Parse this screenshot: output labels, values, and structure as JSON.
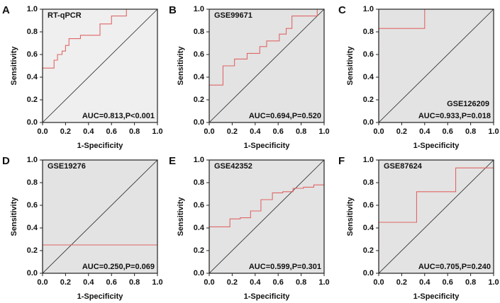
{
  "chart_data": [
    {
      "panel": "A",
      "type": "line",
      "title": "RT-qPCR",
      "title_corner": "top-left",
      "annotation": "AUC=0.813,P<0.001",
      "xlabel": "1-Specificity",
      "ylabel": "Sensitivity",
      "background": "#efefef",
      "diagonal": true,
      "xlim": [
        0,
        1
      ],
      "ylim": [
        0,
        1
      ],
      "xticks": [
        {
          "value": 0,
          "label": "0.0"
        },
        {
          "value": 0.2,
          "label": "0.2"
        },
        {
          "value": 0.4,
          "label": "0.4"
        },
        {
          "value": 0.6,
          "label": "0.6"
        },
        {
          "value": 0.8,
          "label": "0.8"
        },
        {
          "value": 1,
          "label": "1.0"
        }
      ],
      "yticks": [
        {
          "value": 0,
          "label": "0.0"
        },
        {
          "value": 0.2,
          "label": "0.2"
        },
        {
          "value": 0.4,
          "label": "0.4"
        },
        {
          "value": 0.6,
          "label": "0.6"
        },
        {
          "value": 0.8,
          "label": "0.8"
        },
        {
          "value": 1,
          "label": "1.0"
        }
      ],
      "series": [
        {
          "color": "#e06666",
          "x": [
            0,
            0,
            0.1,
            0.1,
            0.13,
            0.13,
            0.17,
            0.17,
            0.2,
            0.2,
            0.23,
            0.23,
            0.33,
            0.33,
            0.5,
            0.5,
            0.6,
            0.6,
            0.73,
            0.73,
            1
          ],
          "values": [
            0,
            0.48,
            0.48,
            0.55,
            0.55,
            0.6,
            0.6,
            0.63,
            0.63,
            0.68,
            0.68,
            0.74,
            0.74,
            0.77,
            0.77,
            0.87,
            0.87,
            0.94,
            0.94,
            1,
            1
          ]
        }
      ]
    },
    {
      "panel": "B",
      "type": "line",
      "title": "GSE99671",
      "title_corner": "top-left",
      "annotation": "AUC=0.694,P=0.520",
      "xlabel": "1-Specificity",
      "ylabel": "Sensitivity",
      "background": "#e3e3e3",
      "diagonal": true,
      "xlim": [
        0,
        1
      ],
      "ylim": [
        0,
        1
      ],
      "xticks": [
        {
          "value": 0,
          "label": "0.0"
        },
        {
          "value": 0.2,
          "label": "0.2"
        },
        {
          "value": 0.4,
          "label": "0.4"
        },
        {
          "value": 0.6,
          "label": "0.6"
        },
        {
          "value": 0.8,
          "label": "0.8"
        },
        {
          "value": 1,
          "label": "1.0"
        }
      ],
      "yticks": [
        {
          "value": 0,
          "label": "0.0"
        },
        {
          "value": 0.2,
          "label": "0.2"
        },
        {
          "value": 0.4,
          "label": "0.4"
        },
        {
          "value": 0.6,
          "label": "0.6"
        },
        {
          "value": 0.8,
          "label": "0.8"
        },
        {
          "value": 1,
          "label": "1.0"
        }
      ],
      "series": [
        {
          "color": "#e06666",
          "x": [
            0,
            0,
            0.12,
            0.12,
            0.22,
            0.22,
            0.33,
            0.33,
            0.44,
            0.44,
            0.5,
            0.5,
            0.61,
            0.61,
            0.67,
            0.67,
            0.72,
            0.72,
            0.94,
            0.94,
            1
          ],
          "values": [
            0,
            0.33,
            0.33,
            0.5,
            0.5,
            0.56,
            0.56,
            0.61,
            0.61,
            0.67,
            0.67,
            0.72,
            0.72,
            0.78,
            0.78,
            0.83,
            0.83,
            0.94,
            0.94,
            1,
            1
          ]
        }
      ]
    },
    {
      "panel": "C",
      "type": "line",
      "title": "GSE126209",
      "title_corner": "bottom-right",
      "annotation": "AUC=0.933,P=0.018",
      "xlabel": "1-Specificity",
      "ylabel": "Sensitivity",
      "background": "#e3e3e3",
      "diagonal": true,
      "xlim": [
        0,
        1
      ],
      "ylim": [
        0,
        1
      ],
      "xticks": [
        {
          "value": 0,
          "label": "0.0"
        },
        {
          "value": 0.2,
          "label": "0.2"
        },
        {
          "value": 0.4,
          "label": "0.4"
        },
        {
          "value": 0.6,
          "label": "0.6"
        },
        {
          "value": 0.8,
          "label": "0.8"
        },
        {
          "value": 1,
          "label": "1.0"
        }
      ],
      "yticks": [
        {
          "value": 0,
          "label": "0.0"
        },
        {
          "value": 0.2,
          "label": "0.2"
        },
        {
          "value": 0.4,
          "label": "0.4"
        },
        {
          "value": 0.6,
          "label": "0.6"
        },
        {
          "value": 0.8,
          "label": "0.8"
        },
        {
          "value": 1,
          "label": "1.0"
        }
      ],
      "series": [
        {
          "color": "#e06666",
          "x": [
            0,
            0,
            0.4,
            0.4,
            1
          ],
          "values": [
            0,
            0.83,
            0.83,
            1,
            1
          ]
        }
      ]
    },
    {
      "panel": "D",
      "type": "line",
      "title": "GSE19276",
      "title_corner": "top-left",
      "annotation": "AUC=0.250,P=0.069",
      "xlabel": "1-Specificity",
      "ylabel": "Sensitivity",
      "background": "#e3e3e3",
      "diagonal": true,
      "xlim": [
        0,
        1
      ],
      "ylim": [
        0,
        1
      ],
      "xticks": [
        {
          "value": 0,
          "label": "0.0"
        },
        {
          "value": 0.2,
          "label": "0.2"
        },
        {
          "value": 0.4,
          "label": "0.4"
        },
        {
          "value": 0.6,
          "label": "0.6"
        },
        {
          "value": 0.8,
          "label": "0.8"
        },
        {
          "value": 1,
          "label": "1.0"
        }
      ],
      "yticks": [
        {
          "value": 0,
          "label": "0.0"
        },
        {
          "value": 0.2,
          "label": "0.2"
        },
        {
          "value": 0.4,
          "label": "0.4"
        },
        {
          "value": 0.6,
          "label": "0.6"
        },
        {
          "value": 0.8,
          "label": "0.8"
        },
        {
          "value": 1,
          "label": "1.0"
        }
      ],
      "series": [
        {
          "color": "#e06666",
          "x": [
            0,
            0,
            1
          ],
          "values": [
            0,
            0.25,
            0.25
          ]
        }
      ]
    },
    {
      "panel": "E",
      "type": "line",
      "title": "GSE42352",
      "title_corner": "top-left",
      "annotation": "AUC=0.599,P=0.301",
      "xlabel": "1-Specificity",
      "ylabel": "Sensitivity",
      "background": "#e3e3e3",
      "diagonal": true,
      "xlim": [
        0,
        1
      ],
      "ylim": [
        0,
        1
      ],
      "xticks": [
        {
          "value": 0,
          "label": "0.0"
        },
        {
          "value": 0.2,
          "label": "0.2"
        },
        {
          "value": 0.4,
          "label": "0.4"
        },
        {
          "value": 0.6,
          "label": "0.6"
        },
        {
          "value": 0.8,
          "label": "0.8"
        },
        {
          "value": 1,
          "label": "1.0"
        }
      ],
      "yticks": [
        {
          "value": 0,
          "label": "0.0"
        },
        {
          "value": 0.2,
          "label": "0.2"
        },
        {
          "value": 0.4,
          "label": "0.4"
        },
        {
          "value": 0.6,
          "label": "0.6"
        },
        {
          "value": 0.8,
          "label": "0.8"
        },
        {
          "value": 1,
          "label": "1.0"
        }
      ],
      "series": [
        {
          "color": "#e06666",
          "x": [
            0,
            0,
            0.18,
            0.18,
            0.27,
            0.27,
            0.36,
            0.36,
            0.45,
            0.45,
            0.55,
            0.55,
            0.64,
            0.64,
            0.73,
            0.73,
            0.82,
            0.82,
            0.91,
            0.91,
            1
          ],
          "values": [
            0,
            0.41,
            0.41,
            0.48,
            0.48,
            0.49,
            0.49,
            0.55,
            0.55,
            0.65,
            0.65,
            0.71,
            0.71,
            0.72,
            0.72,
            0.75,
            0.75,
            0.76,
            0.76,
            0.78,
            0.78
          ]
        }
      ]
    },
    {
      "panel": "F",
      "type": "line",
      "title": "GSE87624",
      "title_corner": "top-left",
      "annotation": "AUC=0.705,P=0.240",
      "xlabel": "1-Specificity",
      "ylabel": "Sensitivity",
      "background": "#e3e3e3",
      "diagonal": true,
      "xlim": [
        0,
        1
      ],
      "ylim": [
        0,
        1
      ],
      "xticks": [
        {
          "value": 0,
          "label": "0.0"
        },
        {
          "value": 0.2,
          "label": "0.2"
        },
        {
          "value": 0.4,
          "label": "0.4"
        },
        {
          "value": 0.6,
          "label": "0.6"
        },
        {
          "value": 0.8,
          "label": "0.8"
        },
        {
          "value": 1,
          "label": "1.0"
        }
      ],
      "yticks": [
        {
          "value": 0,
          "label": "0.0"
        },
        {
          "value": 0.2,
          "label": "0.2"
        },
        {
          "value": 0.4,
          "label": "0.4"
        },
        {
          "value": 0.6,
          "label": "0.6"
        },
        {
          "value": 0.8,
          "label": "0.8"
        },
        {
          "value": 1,
          "label": "1.0"
        }
      ],
      "series": [
        {
          "color": "#e06666",
          "x": [
            0,
            0,
            0.33,
            0.33,
            0.67,
            0.67,
            1
          ],
          "values": [
            0,
            0.45,
            0.45,
            0.72,
            0.72,
            0.93,
            0.93
          ]
        }
      ]
    }
  ]
}
